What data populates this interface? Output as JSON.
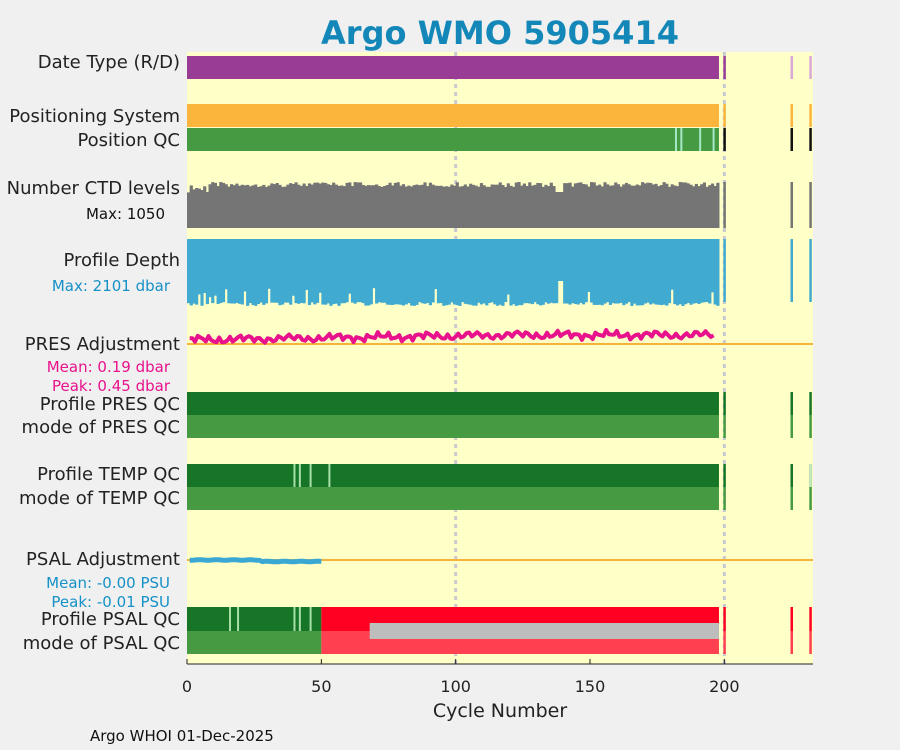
{
  "chart_data": {
    "type": "timeline",
    "title": "Argo WMO 5905414",
    "xlabel": "Cycle Number",
    "xlim": [
      0,
      233
    ],
    "xticks": [
      0,
      50,
      100,
      150,
      200
    ],
    "background_color": "#ffffc8",
    "rows": [
      {
        "label": "Date Type (R/D)",
        "color": "#983c96"
      },
      {
        "label": "Positioning System",
        "color": "#fbb43c"
      },
      {
        "label": "Position QC",
        "color": "#469a41"
      },
      {
        "label": "Number CTD levels",
        "color": "#757575",
        "note": "Max: 1050",
        "note_color": "#111111"
      },
      {
        "label": "Profile Depth",
        "color": "#41aad0",
        "note": "Max: 2101 dbar",
        "note_color": "#1591c7"
      },
      {
        "label": "PRES Adjustment",
        "color": "#e8128c",
        "notes": [
          "Mean: 0.19 dbar",
          "Peak: 0.45 dbar"
        ],
        "note_color": "#e8128c"
      },
      {
        "label": "Profile PRES QC",
        "color": "#167527"
      },
      {
        "label": "mode of PRES QC",
        "color": "#469a41"
      },
      {
        "label": "Profile TEMP QC",
        "color": "#167527"
      },
      {
        "label": "mode of TEMP QC",
        "color": "#469a41"
      },
      {
        "label": "PSAL Adjustment",
        "color": "#3ba8d4",
        "notes": [
          "Mean: -0.00 PSU",
          "Peak: -0.01 PSU"
        ],
        "note_color": "#1591c7"
      },
      {
        "label": "Profile PSAL QC",
        "segments": [
          {
            "from": 0,
            "to": 50,
            "color": "#167527"
          },
          {
            "from": 50,
            "to": 198,
            "color": "#ff0022"
          }
        ]
      },
      {
        "label": "mode of PSAL QC",
        "segments": [
          {
            "from": 0,
            "to": 50,
            "color": "#469a41"
          },
          {
            "from": 50,
            "to": 198,
            "color": "#ff4050"
          }
        ],
        "gray_band": {
          "from": 68,
          "to": 198,
          "color": "#bdbdbd"
        }
      }
    ],
    "last_regular_cycle": 198,
    "extra_cycles": [
      200,
      225,
      232
    ],
    "dashed_reference_lines": [
      100,
      200
    ],
    "ctd_levels_max": 1050,
    "profile_depth_max_dbar": 2101,
    "pres_adjustment": {
      "mean_dbar": 0.19,
      "peak_dbar": 0.45
    },
    "psal_adjustment": {
      "mean_psu": -0.0,
      "peak_psu": -0.01,
      "last_cycle": 50
    },
    "position_qc_light_cycles": [
      182,
      184,
      191,
      196
    ],
    "temp_qc_light_cycles": [
      40,
      42,
      46,
      53
    ],
    "psal_qc_light_cycles": [
      16,
      19,
      40,
      42,
      46
    ]
  },
  "footer": "Argo WHOI 01-Dec-2025"
}
